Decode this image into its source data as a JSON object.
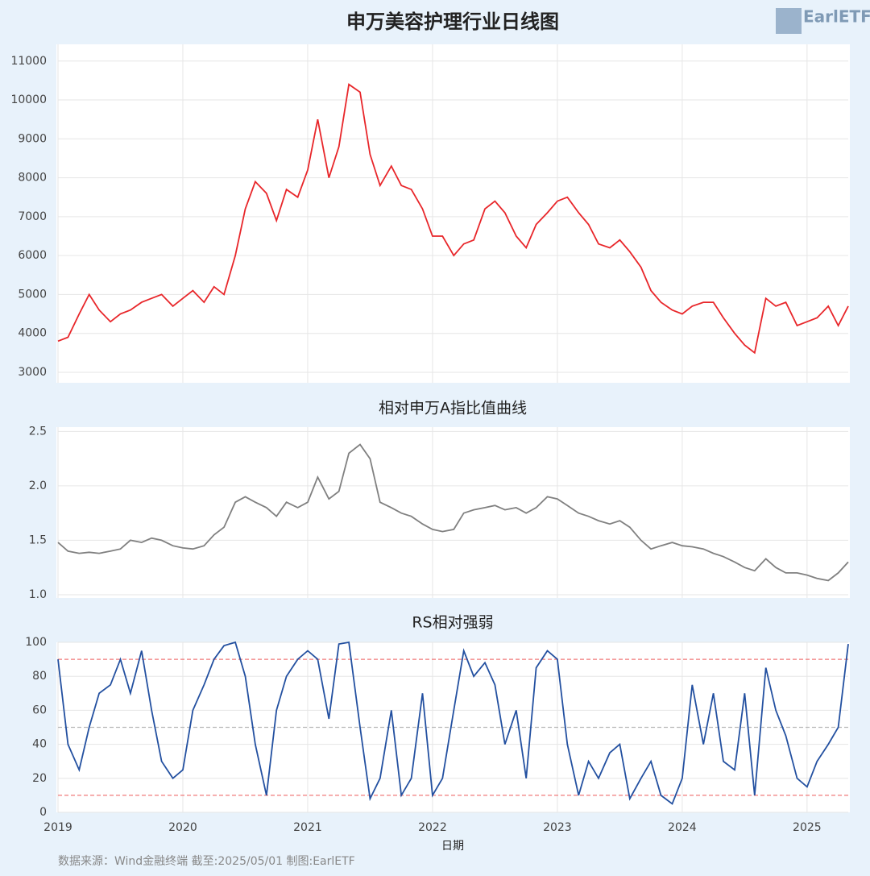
{
  "title": "申万美容护理行业日线图",
  "logo": "EarlETF",
  "x_label": "日期",
  "source": "数据来源：Wind金融终端 截至:2025/05/01 制图:EarlETF",
  "chart_data": [
    {
      "type": "line",
      "xlim": [
        2019,
        2025.33
      ],
      "xticks": [
        2019,
        2020,
        2021,
        2022,
        2023,
        2024,
        2025
      ],
      "ylim": [
        2730,
        11430
      ],
      "yticks": [
        3000,
        4000,
        5000,
        6000,
        7000,
        8000,
        9000,
        10000,
        11000
      ],
      "grid": true,
      "x": [
        2019,
        2019.08,
        2019.17,
        2019.25,
        2019.33,
        2019.42,
        2019.5,
        2019.58,
        2019.67,
        2019.75,
        2019.83,
        2019.92,
        2020,
        2020.08,
        2020.17,
        2020.25,
        2020.33,
        2020.42,
        2020.5,
        2020.58,
        2020.67,
        2020.75,
        2020.83,
        2020.92,
        2021,
        2021.08,
        2021.17,
        2021.25,
        2021.33,
        2021.42,
        2021.5,
        2021.58,
        2021.67,
        2021.75,
        2021.83,
        2021.92,
        2022,
        2022.08,
        2022.17,
        2022.25,
        2022.33,
        2022.42,
        2022.5,
        2022.58,
        2022.67,
        2022.75,
        2022.83,
        2022.92,
        2023,
        2023.08,
        2023.17,
        2023.25,
        2023.33,
        2023.42,
        2023.5,
        2023.58,
        2023.67,
        2023.75,
        2023.83,
        2023.92,
        2024,
        2024.08,
        2024.17,
        2024.25,
        2024.33,
        2024.42,
        2024.5,
        2024.58,
        2024.67,
        2024.75,
        2024.83,
        2024.92,
        2025,
        2025.08,
        2025.17,
        2025.25,
        2025.33
      ],
      "series": [
        {
          "color": "#e8262a",
          "values": [
            3800,
            3900,
            4500,
            5000,
            4600,
            4300,
            4500,
            4600,
            4800,
            4900,
            5000,
            4700,
            4900,
            5100,
            4800,
            5200,
            5000,
            6000,
            7200,
            7900,
            7600,
            6900,
            7700,
            7500,
            8200,
            9500,
            8000,
            8800,
            10400,
            10200,
            8600,
            7800,
            8300,
            7800,
            7700,
            7200,
            6500,
            6500,
            6000,
            6300,
            6400,
            7200,
            7400,
            7100,
            6500,
            6200,
            6800,
            7100,
            7400,
            7500,
            7100,
            6800,
            6300,
            6200,
            6400,
            6100,
            5700,
            5100,
            4800,
            4600,
            4500,
            4700,
            4800,
            4800,
            4400,
            4000,
            3700,
            3500,
            4900,
            4700,
            4800,
            4200,
            4300,
            4400,
            4700,
            4200,
            4700
          ]
        }
      ]
    },
    {
      "type": "line",
      "title": "相对申万A指比值曲线",
      "xlim": [
        2019,
        2025.33
      ],
      "xticks": [
        2019,
        2020,
        2021,
        2022,
        2023,
        2024,
        2025
      ],
      "ylim": [
        0.97,
        2.54
      ],
      "yticks": [
        {
          "value": 1,
          "label": "1.0"
        },
        1.5,
        {
          "value": 2,
          "label": "2.0"
        },
        2.5
      ],
      "grid": true,
      "x": [
        2019,
        2019.08,
        2019.17,
        2019.25,
        2019.33,
        2019.42,
        2019.5,
        2019.58,
        2019.67,
        2019.75,
        2019.83,
        2019.92,
        2020,
        2020.08,
        2020.17,
        2020.25,
        2020.33,
        2020.42,
        2020.5,
        2020.58,
        2020.67,
        2020.75,
        2020.83,
        2020.92,
        2021,
        2021.08,
        2021.17,
        2021.25,
        2021.33,
        2021.42,
        2021.5,
        2021.58,
        2021.67,
        2021.75,
        2021.83,
        2021.92,
        2022,
        2022.08,
        2022.17,
        2022.25,
        2022.33,
        2022.42,
        2022.5,
        2022.58,
        2022.67,
        2022.75,
        2022.83,
        2022.92,
        2023,
        2023.08,
        2023.17,
        2023.25,
        2023.33,
        2023.42,
        2023.5,
        2023.58,
        2023.67,
        2023.75,
        2023.83,
        2023.92,
        2024,
        2024.08,
        2024.17,
        2024.25,
        2024.33,
        2024.42,
        2024.5,
        2024.58,
        2024.67,
        2024.75,
        2024.83,
        2024.92,
        2025,
        2025.08,
        2025.17,
        2025.25,
        2025.33
      ],
      "series": [
        {
          "color": "#808080",
          "values": [
            1.48,
            1.4,
            1.38,
            1.39,
            1.38,
            1.4,
            1.42,
            1.5,
            1.48,
            1.52,
            1.5,
            1.45,
            1.43,
            1.42,
            1.45,
            1.55,
            1.62,
            1.85,
            1.9,
            1.85,
            1.8,
            1.72,
            1.85,
            1.8,
            1.85,
            2.08,
            1.88,
            1.95,
            2.3,
            2.38,
            2.25,
            1.85,
            1.8,
            1.75,
            1.72,
            1.65,
            1.6,
            1.58,
            1.6,
            1.75,
            1.78,
            1.8,
            1.82,
            1.78,
            1.8,
            1.75,
            1.8,
            1.9,
            1.88,
            1.82,
            1.75,
            1.72,
            1.68,
            1.65,
            1.68,
            1.62,
            1.5,
            1.42,
            1.45,
            1.48,
            1.45,
            1.44,
            1.42,
            1.38,
            1.35,
            1.3,
            1.25,
            1.22,
            1.33,
            1.25,
            1.2,
            1.2,
            1.18,
            1.15,
            1.13,
            1.2,
            1.3
          ]
        }
      ]
    },
    {
      "type": "line",
      "title": "RS相对强弱",
      "xlim": [
        2019,
        2025.33
      ],
      "xticks": [
        2019,
        2020,
        2021,
        2022,
        2023,
        2024,
        2025
      ],
      "ylim": [
        0,
        100
      ],
      "yticks": [
        0,
        20,
        40,
        60,
        80,
        100
      ],
      "grid": true,
      "ref_lines": [
        {
          "value": 90,
          "color": "#f07b7b"
        },
        {
          "value": 50,
          "color": "#b8b8b8"
        },
        {
          "value": 10,
          "color": "#f07b7b"
        }
      ],
      "x": [
        2019,
        2019.08,
        2019.17,
        2019.25,
        2019.33,
        2019.42,
        2019.5,
        2019.58,
        2019.67,
        2019.75,
        2019.83,
        2019.92,
        2020,
        2020.08,
        2020.17,
        2020.25,
        2020.33,
        2020.42,
        2020.5,
        2020.58,
        2020.67,
        2020.75,
        2020.83,
        2020.92,
        2021,
        2021.08,
        2021.17,
        2021.25,
        2021.33,
        2021.42,
        2021.5,
        2021.58,
        2021.67,
        2021.75,
        2021.83,
        2021.92,
        2022,
        2022.08,
        2022.17,
        2022.25,
        2022.33,
        2022.42,
        2022.5,
        2022.58,
        2022.67,
        2022.75,
        2022.83,
        2022.92,
        2023,
        2023.08,
        2023.17,
        2023.25,
        2023.33,
        2023.42,
        2023.5,
        2023.58,
        2023.67,
        2023.75,
        2023.83,
        2023.92,
        2024,
        2024.08,
        2024.17,
        2024.25,
        2024.33,
        2024.42,
        2024.5,
        2024.58,
        2024.67,
        2024.75,
        2024.83,
        2024.92,
        2025,
        2025.08,
        2025.17,
        2025.25,
        2025.33
      ],
      "series": [
        {
          "color": "#2350a0",
          "values": [
            90,
            40,
            25,
            50,
            70,
            75,
            90,
            70,
            95,
            60,
            30,
            20,
            25,
            60,
            75,
            90,
            98,
            100,
            80,
            40,
            10,
            60,
            80,
            90,
            95,
            90,
            55,
            99,
            100,
            50,
            8,
            20,
            60,
            10,
            20,
            70,
            10,
            20,
            60,
            95,
            80,
            88,
            75,
            40,
            60,
            20,
            85,
            95,
            90,
            40,
            10,
            30,
            20,
            35,
            40,
            8,
            20,
            30,
            10,
            5,
            20,
            75,
            40,
            70,
            30,
            25,
            70,
            10,
            85,
            60,
            45,
            20,
            15,
            30,
            40,
            50,
            99
          ]
        }
      ]
    }
  ]
}
